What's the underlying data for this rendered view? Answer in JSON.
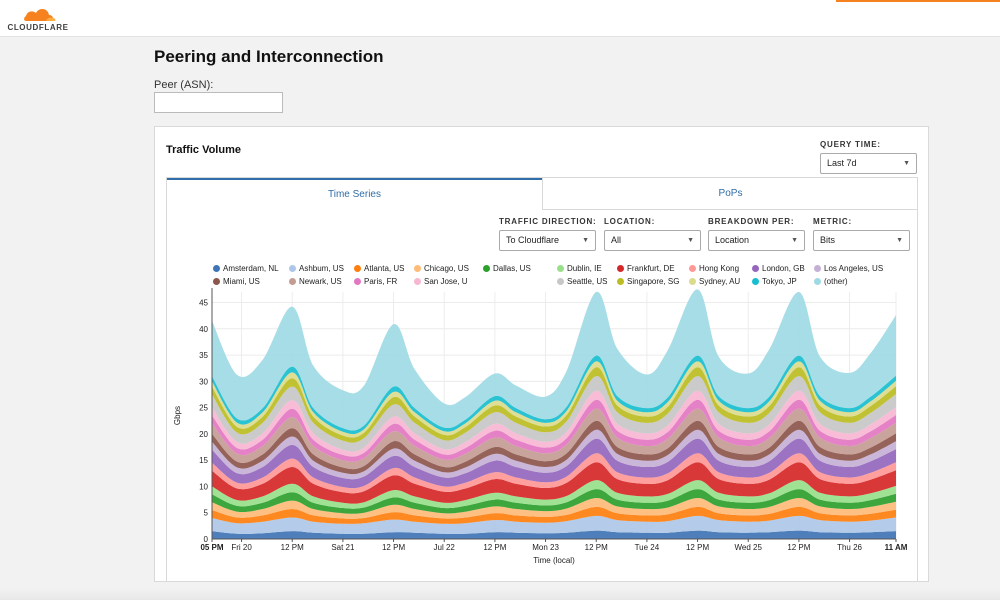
{
  "brand": {
    "name": "CLOUDFLARE",
    "colors": {
      "orange": "#f6821f",
      "light_orange": "#fbad41",
      "link_blue": "#2f6ea8"
    }
  },
  "page": {
    "title": "Peering and Interconnection"
  },
  "peer": {
    "label": "Peer (ASN):",
    "value": ""
  },
  "card": {
    "title": "Traffic Volume",
    "query_time": {
      "label": "QUERY TIME:",
      "value": "Last 7d"
    }
  },
  "tabs": [
    {
      "label": "Time Series",
      "active": true
    },
    {
      "label": "PoPs",
      "active": false
    }
  ],
  "controls": {
    "direction": {
      "label": "TRAFFIC DIRECTION:",
      "value": "To Cloudflare"
    },
    "location": {
      "label": "LOCATION:",
      "value": "All"
    },
    "breakdown": {
      "label": "BREAKDOWN PER:",
      "value": "Location"
    },
    "metric": {
      "label": "METRIC:",
      "value": "Bits"
    }
  },
  "icons": {
    "caret": "chevron-down-icon",
    "logo": "cloudflare-cloud-icon"
  },
  "chart_data": {
    "type": "area",
    "stacked": true,
    "ylabel": "Gbps",
    "xlabel": "Time (local)",
    "ylim": [
      0,
      47
    ],
    "yticks": [
      0,
      5,
      10,
      15,
      20,
      25,
      30,
      35,
      40,
      45
    ],
    "xlim": [
      0,
      162
    ],
    "x_ticks": [
      {
        "x": 0,
        "label": "05 PM",
        "bold": true
      },
      {
        "x": 7,
        "label": "Fri 20"
      },
      {
        "x": 19,
        "label": "12 PM"
      },
      {
        "x": 31,
        "label": "Sat 21"
      },
      {
        "x": 43,
        "label": "12 PM"
      },
      {
        "x": 55,
        "label": "Jul 22"
      },
      {
        "x": 67,
        "label": "12 PM"
      },
      {
        "x": 79,
        "label": "Mon 23"
      },
      {
        "x": 91,
        "label": "12 PM"
      },
      {
        "x": 103,
        "label": "Tue 24"
      },
      {
        "x": 115,
        "label": "12 PM"
      },
      {
        "x": 127,
        "label": "Wed 25"
      },
      {
        "x": 139,
        "label": "12 PM"
      },
      {
        "x": 151,
        "label": "Thu 26"
      },
      {
        "x": 162,
        "label": "11 AM",
        "bold": true
      }
    ],
    "x": [
      0,
      6,
      12,
      19,
      24,
      31,
      36,
      43,
      48,
      55,
      60,
      67,
      72,
      79,
      84,
      91,
      96,
      103,
      108,
      115,
      120,
      127,
      132,
      139,
      144,
      151,
      156,
      162
    ],
    "series": [
      {
        "name": "Amsterdam, NL",
        "color": "#3f74b5",
        "values": [
          1.5,
          1,
          1.1,
          1.5,
          1.2,
          1,
          1,
          1.3,
          1.2,
          1,
          1,
          1.3,
          1.2,
          1.1,
          1.2,
          1.6,
          1.3,
          1.2,
          1.2,
          1.6,
          1.3,
          1.2,
          1.3,
          1.6,
          1.3,
          1.2,
          1.3,
          1.5
        ]
      },
      {
        "name": "Ashbum, US",
        "color": "#aec7e8",
        "values": [
          2.5,
          2.0,
          2.2,
          2.6,
          2.1,
          1.9,
          2.0,
          2.4,
          2.1,
          1.9,
          2.0,
          2.3,
          2.1,
          2.0,
          2.2,
          2.8,
          2.3,
          2.1,
          2.2,
          2.8,
          2.3,
          2.1,
          2.2,
          2.8,
          2.3,
          2.1,
          2.2,
          2.6
        ]
      },
      {
        "name": "Atlanta, US",
        "color": "#ff7f0e",
        "values": [
          1.5,
          1.1,
          1.2,
          1.6,
          1.2,
          1.0,
          1.0,
          1.4,
          1.2,
          1.0,
          1.1,
          1.3,
          1.2,
          1.1,
          1.2,
          1.7,
          1.3,
          1.2,
          1.3,
          1.7,
          1.3,
          1.2,
          1.3,
          1.7,
          1.3,
          1.2,
          1.3,
          1.5
        ]
      },
      {
        "name": "Chicago, US",
        "color": "#ffbb78",
        "values": [
          1.5,
          1.1,
          1.2,
          1.6,
          1.2,
          1.0,
          1.0,
          1.4,
          1.2,
          1.0,
          1.1,
          1.3,
          1.2,
          1.1,
          1.2,
          1.7,
          1.3,
          1.2,
          1.3,
          1.7,
          1.3,
          1.2,
          1.3,
          1.7,
          1.3,
          1.2,
          1.3,
          1.5
        ]
      },
      {
        "name": "Dallas, US",
        "color": "#2ca02c",
        "values": [
          1.5,
          1.1,
          1.2,
          1.6,
          1.2,
          1.0,
          1.0,
          1.4,
          1.2,
          1.0,
          1.1,
          1.3,
          1.2,
          1.1,
          1.2,
          1.7,
          1.3,
          1.2,
          1.3,
          1.7,
          1.3,
          1.2,
          1.3,
          1.7,
          1.3,
          1.2,
          1.3,
          1.5
        ]
      },
      {
        "name": "Dublin, IE",
        "color": "#98df8a",
        "values": [
          1.5,
          1.1,
          1.2,
          1.6,
          1.2,
          1.0,
          1.0,
          1.4,
          1.2,
          1.0,
          1.1,
          1.3,
          1.2,
          1.1,
          1.2,
          1.7,
          1.3,
          1.2,
          1.3,
          1.7,
          1.3,
          1.2,
          1.3,
          1.7,
          1.3,
          1.2,
          1.3,
          1.5
        ]
      },
      {
        "name": "Frankfurt, DE",
        "color": "#d62728",
        "values": [
          3.0,
          2.2,
          2.4,
          3.2,
          2.4,
          2.0,
          2.1,
          2.8,
          2.4,
          2.1,
          2.2,
          2.6,
          2.4,
          2.2,
          2.5,
          3.4,
          2.6,
          2.4,
          2.6,
          3.4,
          2.6,
          2.4,
          2.6,
          3.4,
          2.6,
          2.4,
          2.6,
          3.0
        ]
      },
      {
        "name": "Hong Kong",
        "color": "#ff9896",
        "values": [
          1.5,
          1.1,
          1.2,
          1.6,
          1.2,
          1.0,
          1.0,
          1.4,
          1.2,
          1.0,
          1.1,
          1.3,
          1.2,
          1.1,
          1.2,
          1.7,
          1.3,
          1.2,
          1.3,
          1.7,
          1.3,
          1.2,
          1.3,
          1.7,
          1.3,
          1.2,
          1.3,
          1.5
        ]
      },
      {
        "name": "London, GB",
        "color": "#9467bd",
        "values": [
          2.5,
          1.8,
          2.0,
          2.6,
          2.0,
          1.7,
          1.8,
          2.3,
          2.0,
          1.7,
          1.8,
          2.2,
          2.0,
          1.8,
          2.0,
          2.8,
          2.2,
          2.0,
          2.2,
          2.8,
          2.2,
          2.0,
          2.2,
          2.8,
          2.2,
          2.0,
          2.2,
          2.5
        ]
      },
      {
        "name": "Los Angeles, US",
        "color": "#c5b0d5",
        "values": [
          1.5,
          1.1,
          1.2,
          1.6,
          1.2,
          1.0,
          1.0,
          1.4,
          1.2,
          1.0,
          1.1,
          1.3,
          1.2,
          1.1,
          1.2,
          1.7,
          1.3,
          1.2,
          1.3,
          1.7,
          1.3,
          1.2,
          1.3,
          1.7,
          1.3,
          1.2,
          1.3,
          1.5
        ]
      },
      {
        "name": "Miami, US",
        "color": "#8c564b",
        "values": [
          1.5,
          1.1,
          1.2,
          1.6,
          1.2,
          1.0,
          1.0,
          1.4,
          1.2,
          1.0,
          1.1,
          1.3,
          1.2,
          1.1,
          1.2,
          1.7,
          1.3,
          1.2,
          1.3,
          1.7,
          1.3,
          1.2,
          1.3,
          1.7,
          1.3,
          1.2,
          1.3,
          1.5
        ]
      },
      {
        "name": "Newark, US",
        "color": "#c49c94",
        "values": [
          2.0,
          1.5,
          1.6,
          2.1,
          1.6,
          1.4,
          1.5,
          1.9,
          1.6,
          1.4,
          1.5,
          1.8,
          1.6,
          1.5,
          1.7,
          2.3,
          1.8,
          1.6,
          1.8,
          2.3,
          1.8,
          1.6,
          1.8,
          2.3,
          1.8,
          1.6,
          1.8,
          2.0
        ]
      },
      {
        "name": "Paris, FR",
        "color": "#e377c2",
        "values": [
          1.5,
          1.1,
          1.2,
          1.6,
          1.2,
          1.0,
          1.0,
          1.4,
          1.2,
          1.0,
          1.1,
          1.3,
          1.2,
          1.1,
          1.2,
          1.7,
          1.3,
          1.2,
          1.3,
          1.7,
          1.3,
          1.2,
          1.3,
          1.7,
          1.3,
          1.2,
          1.3,
          1.5
        ]
      },
      {
        "name": "San Jose, U",
        "color": "#f7b6d2",
        "values": [
          1.5,
          1.1,
          1.2,
          1.6,
          1.2,
          1.0,
          1.0,
          1.4,
          1.2,
          1.0,
          1.1,
          1.3,
          1.2,
          1.1,
          1.2,
          1.7,
          1.3,
          1.2,
          1.3,
          1.7,
          1.3,
          1.2,
          1.3,
          1.7,
          1.3,
          1.2,
          1.3,
          1.5
        ]
      },
      {
        "name": "Seattle, US",
        "color": "#c7c7c7",
        "values": [
          2.5,
          1.8,
          2.0,
          2.6,
          2.0,
          1.7,
          1.8,
          2.3,
          2.0,
          1.7,
          1.8,
          2.2,
          2.0,
          1.8,
          2.0,
          2.8,
          2.2,
          2.0,
          2.2,
          2.8,
          2.2,
          2.0,
          2.2,
          2.8,
          2.2,
          2.0,
          2.2,
          2.5
        ]
      },
      {
        "name": "Singapore, SG",
        "color": "#bcbd22",
        "values": [
          1.5,
          1.1,
          1.2,
          1.6,
          1.2,
          1.0,
          1.0,
          1.4,
          1.2,
          1.0,
          1.1,
          1.3,
          1.2,
          1.1,
          1.2,
          1.7,
          1.3,
          1.2,
          1.3,
          1.7,
          1.3,
          1.2,
          1.3,
          1.7,
          1.3,
          1.2,
          1.3,
          1.5
        ]
      },
      {
        "name": "Sydney, AU",
        "color": "#dbdb8d",
        "values": [
          1.0,
          0.8,
          0.8,
          1.1,
          0.8,
          0.7,
          0.7,
          1.0,
          0.8,
          0.7,
          0.7,
          0.9,
          0.8,
          0.7,
          0.8,
          1.1,
          0.9,
          0.8,
          0.9,
          1.1,
          0.9,
          0.8,
          0.9,
          1.1,
          0.9,
          0.8,
          0.9,
          1.0
        ]
      },
      {
        "name": "Tokyo, JP",
        "color": "#17becf",
        "values": [
          1.0,
          0.8,
          0.8,
          1.1,
          0.8,
          0.7,
          0.7,
          1.0,
          0.8,
          0.7,
          0.7,
          0.9,
          0.8,
          0.7,
          0.8,
          1.1,
          0.9,
          0.8,
          0.9,
          1.1,
          0.9,
          0.8,
          0.9,
          1.1,
          0.9,
          0.8,
          0.9,
          1.0
        ]
      },
      {
        "name": "(other)",
        "color": "#9edae5",
        "values": [
          10.5,
          8.3,
          9.2,
          11.4,
          8.1,
          7.2,
          7.6,
          11.9,
          7.4,
          4.6,
          4.3,
          4.3,
          4.3,
          4.3,
          6.8,
          12.1,
          9.0,
          6.4,
          9.0,
          12.6,
          7.5,
          6.6,
          9.0,
          12.1,
          7.5,
          6.7,
          8.3,
          11.5
        ]
      }
    ]
  }
}
